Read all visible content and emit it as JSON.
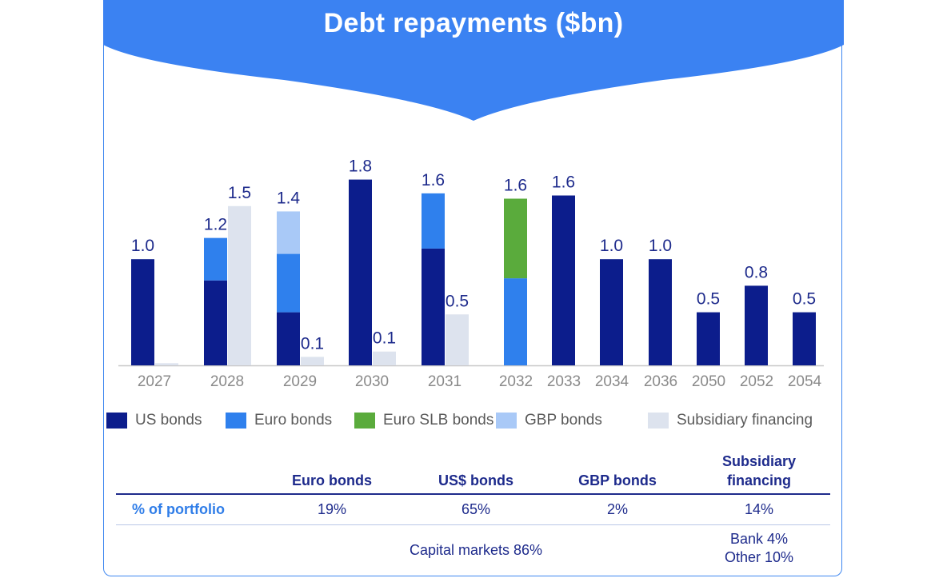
{
  "chart_data": {
    "type": "bar",
    "stacked": true,
    "title": "Debt repayments ($bn)",
    "xlabel": "",
    "ylabel": "",
    "ylim": [
      0,
      1.8
    ],
    "grid": false,
    "legend_position": "bottom",
    "groups": [
      {
        "label": "2027",
        "bars": [
          {
            "total_label": "1.0",
            "segments": [
              {
                "series": "US bonds",
                "value": 1.0
              }
            ]
          },
          {
            "total_label": "",
            "segments": [
              {
                "series": "Subsidiary financing",
                "value": 0.02
              }
            ]
          }
        ]
      },
      {
        "label": "2028",
        "bars": [
          {
            "total_label": "1.2",
            "segments": [
              {
                "series": "US bonds",
                "value": 0.8
              },
              {
                "series": "Euro bonds",
                "value": 0.4
              }
            ]
          },
          {
            "total_label": "1.5",
            "segments": [
              {
                "series": "Subsidiary financing",
                "value": 1.5
              }
            ]
          }
        ]
      },
      {
        "label": "2029",
        "bars": [
          {
            "total_label": "1.4",
            "segments": [
              {
                "series": "US bonds",
                "value": 0.5
              },
              {
                "series": "Euro bonds",
                "value": 0.55
              },
              {
                "series": "GBP bonds",
                "value": 0.4
              }
            ]
          },
          {
            "total_label": "0.1",
            "segments": [
              {
                "series": "Subsidiary financing",
                "value": 0.08
              }
            ]
          }
        ]
      },
      {
        "label": "2030",
        "bars": [
          {
            "total_label": "1.8",
            "segments": [
              {
                "series": "US bonds",
                "value": 1.75
              }
            ]
          },
          {
            "total_label": "0.1",
            "segments": [
              {
                "series": "Subsidiary financing",
                "value": 0.13
              }
            ]
          }
        ]
      },
      {
        "label": "2031",
        "bars": [
          {
            "total_label": "1.6",
            "segments": [
              {
                "series": "US bonds",
                "value": 1.1
              },
              {
                "series": "Euro bonds",
                "value": 0.52
              }
            ]
          },
          {
            "total_label": "0.5",
            "segments": [
              {
                "series": "Subsidiary financing",
                "value": 0.48
              }
            ]
          }
        ]
      },
      {
        "label": "2032",
        "bars": [
          {
            "total_label": "1.6",
            "segments": [
              {
                "series": "Euro bonds",
                "value": 0.82
              },
              {
                "series": "Euro SLB bonds",
                "value": 0.75
              }
            ]
          }
        ]
      },
      {
        "label": "2033",
        "bars": [
          {
            "total_label": "1.6",
            "segments": [
              {
                "series": "US bonds",
                "value": 1.6
              }
            ]
          }
        ]
      },
      {
        "label": "2034",
        "bars": [
          {
            "total_label": "1.0",
            "segments": [
              {
                "series": "US bonds",
                "value": 1.0
              }
            ]
          }
        ]
      },
      {
        "label": "2036",
        "bars": [
          {
            "total_label": "1.0",
            "segments": [
              {
                "series": "US bonds",
                "value": 1.0
              }
            ]
          }
        ]
      },
      {
        "label": "2050",
        "bars": [
          {
            "total_label": "0.5",
            "segments": [
              {
                "series": "US bonds",
                "value": 0.5
              }
            ]
          }
        ]
      },
      {
        "label": "2052",
        "bars": [
          {
            "total_label": "0.8",
            "segments": [
              {
                "series": "US bonds",
                "value": 0.75
              }
            ]
          }
        ]
      },
      {
        "label": "2054",
        "bars": [
          {
            "total_label": "0.5",
            "segments": [
              {
                "series": "US bonds",
                "value": 0.5
              }
            ]
          }
        ]
      }
    ],
    "series": [
      {
        "name": "US bonds",
        "color": "#0c1d8c"
      },
      {
        "name": "Euro bonds",
        "color": "#2f80ed"
      },
      {
        "name": "Euro SLB bonds",
        "color": "#5aab3c"
      },
      {
        "name": "GBP bonds",
        "color": "#a9c9f7"
      },
      {
        "name": "Subsidiary financing",
        "color": "#dde3ee"
      }
    ]
  },
  "table": {
    "headers": [
      "Euro bonds",
      "US$ bonds",
      "GBP bonds",
      "Subsidiary",
      "financing"
    ],
    "row_label": "% of portfolio",
    "portfolio": [
      "19%",
      "65%",
      "2%",
      "14%"
    ],
    "capital_markets": "Capital markets 86%",
    "bank": "Bank 4%",
    "other": "Other 10%"
  },
  "colors": {
    "banner": "#3b82f2",
    "border": "#3d86f0",
    "label": "#1e2b8c",
    "axis_label": "#8a8a8a"
  }
}
